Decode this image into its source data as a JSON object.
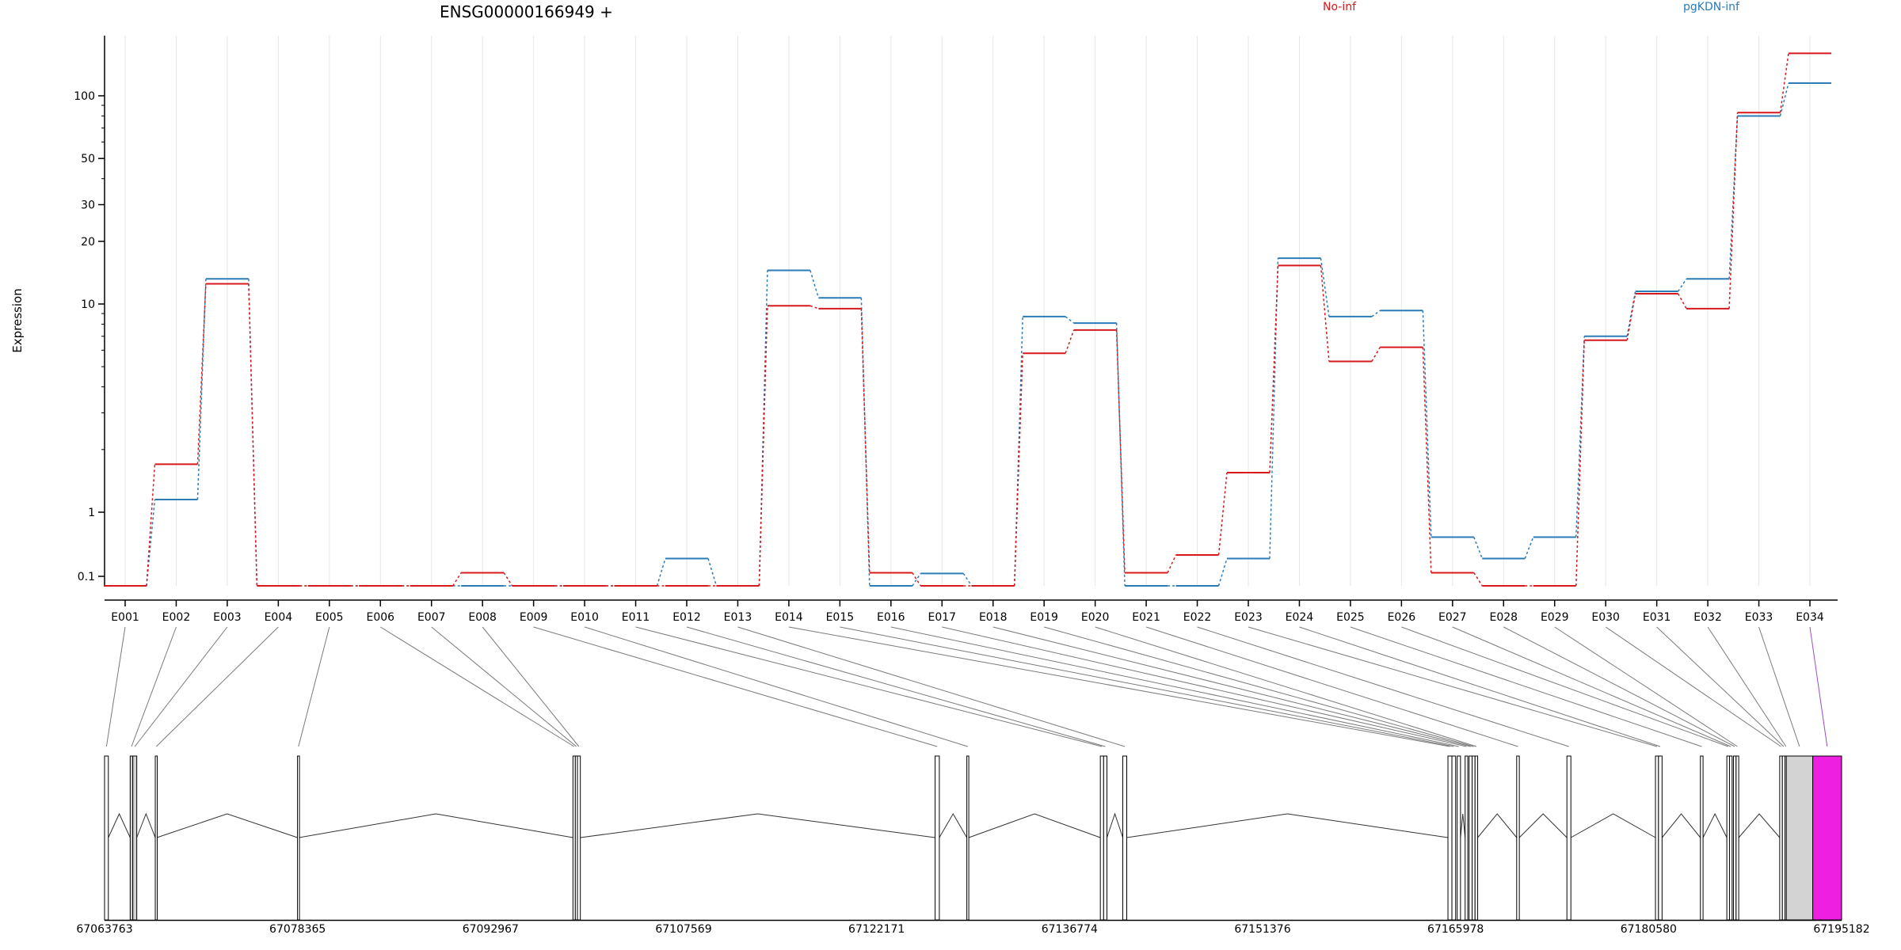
{
  "chart_data": {
    "type": "line",
    "title": "ENSG00000166949 +",
    "ylabel": "Expression",
    "y_scale": "log",
    "yticks": [
      {
        "value": 0.1,
        "label": "0.1"
      },
      {
        "value": 1,
        "label": "1"
      },
      {
        "value": 10,
        "label": "10"
      },
      {
        "value": 20,
        "label": "20"
      },
      {
        "value": 30,
        "label": "30"
      },
      {
        "value": 50,
        "label": "50"
      },
      {
        "value": 100,
        "label": "100"
      }
    ],
    "categories": [
      "E001",
      "E002",
      "E003",
      "E004",
      "E005",
      "E006",
      "E007",
      "E008",
      "E009",
      "E010",
      "E011",
      "E012",
      "E013",
      "E014",
      "E015",
      "E016",
      "E017",
      "E018",
      "E019",
      "E020",
      "E021",
      "E022",
      "E023",
      "E024",
      "E025",
      "E026",
      "E027",
      "E028",
      "E029",
      "E030",
      "E031",
      "E032",
      "E033",
      "E034"
    ],
    "series": [
      {
        "name": "No-inf",
        "color": "#d7191c",
        "values": [
          0.05,
          1.7,
          12.5,
          0.05,
          0.05,
          0.05,
          0.05,
          0.15,
          0.05,
          0.05,
          0.05,
          0.05,
          0.05,
          9.8,
          9.5,
          0.15,
          0.05,
          0.05,
          5.8,
          7.5,
          0.15,
          0.4,
          1.55,
          15.3,
          5.3,
          6.2,
          0.15,
          0.05,
          0.05,
          6.7,
          11.2,
          9.5,
          83,
          160
        ]
      },
      {
        "name": "pgKDN-inf",
        "color": "#2c7bb6",
        "values": [
          0.05,
          1.15,
          13.2,
          0.05,
          0.05,
          0.05,
          0.05,
          0.05,
          0.05,
          0.05,
          0.05,
          0.35,
          0.05,
          14.5,
          10.7,
          0.05,
          0.14,
          0.05,
          8.7,
          8.1,
          0.05,
          0.05,
          0.35,
          16.6,
          8.7,
          9.3,
          0.65,
          0.35,
          0.65,
          7.0,
          11.5,
          13.2,
          80,
          115
        ]
      }
    ],
    "grid": "vertical",
    "legend": "top"
  },
  "gene_model": {
    "coordinate_labels": [
      "67063763",
      "67078365",
      "67092967",
      "67107569",
      "67122171",
      "67136774",
      "67151376",
      "67165978",
      "67180580",
      "67195182"
    ],
    "genome_start": 67063763,
    "genome_end": 67195182,
    "exons": [
      {
        "id": "E001",
        "start": 67063763,
        "end": 67064050,
        "color": "#ffffff"
      },
      {
        "id": "E002",
        "start": 67065700,
        "end": 67065900,
        "color": "#d3d3d3"
      },
      {
        "id": "E003",
        "start": 67065900,
        "end": 67066200,
        "color": "#d3d3d3"
      },
      {
        "id": "E004",
        "start": 67067600,
        "end": 67067720,
        "color": "#ffffff"
      },
      {
        "id": "E005",
        "start": 67078360,
        "end": 67078470,
        "color": "#ffffff"
      },
      {
        "id": "E006",
        "start": 67099200,
        "end": 67099380,
        "color": "#ffffff"
      },
      {
        "id": "E007",
        "start": 67099380,
        "end": 67099540,
        "color": "#ffffff"
      },
      {
        "id": "E008",
        "start": 67099540,
        "end": 67099760,
        "color": "#ffffff"
      },
      {
        "id": "E009",
        "start": 67126600,
        "end": 67126920,
        "color": "#ffffff"
      },
      {
        "id": "E010",
        "start": 67129000,
        "end": 67129150,
        "color": "#ffffff"
      },
      {
        "id": "E011",
        "start": 67139100,
        "end": 67139350,
        "color": "#ffffff"
      },
      {
        "id": "E012",
        "start": 67139350,
        "end": 67139600,
        "color": "#ffffff"
      },
      {
        "id": "E013",
        "start": 67140800,
        "end": 67141100,
        "color": "#ffffff"
      },
      {
        "id": "E014",
        "start": 67165400,
        "end": 67165700,
        "color": "#ffffff"
      },
      {
        "id": "E015",
        "start": 67165700,
        "end": 67165980,
        "color": "#ffffff"
      },
      {
        "id": "E016",
        "start": 67166100,
        "end": 67166350,
        "color": "#ffffff"
      },
      {
        "id": "E017",
        "start": 67166700,
        "end": 67166900,
        "color": "#ffffff"
      },
      {
        "id": "E018",
        "start": 67167000,
        "end": 67167230,
        "color": "#ffffff"
      },
      {
        "id": "E019",
        "start": 67167230,
        "end": 67167450,
        "color": "#ffffff"
      },
      {
        "id": "E020",
        "start": 67167450,
        "end": 67167650,
        "color": "#ffffff"
      },
      {
        "id": "E021",
        "start": 67170600,
        "end": 67170800,
        "color": "#ffffff"
      },
      {
        "id": "E022",
        "start": 67174400,
        "end": 67174700,
        "color": "#ffffff"
      },
      {
        "id": "E023",
        "start": 67181100,
        "end": 67181330,
        "color": "#ffffff"
      },
      {
        "id": "E024",
        "start": 67181330,
        "end": 67181600,
        "color": "#ffffff"
      },
      {
        "id": "E025",
        "start": 67184500,
        "end": 67184700,
        "color": "#ffffff"
      },
      {
        "id": "E026",
        "start": 67186500,
        "end": 67186700,
        "color": "#ffffff"
      },
      {
        "id": "E027",
        "start": 67186700,
        "end": 67186900,
        "color": "#ffffff"
      },
      {
        "id": "E028",
        "start": 67187000,
        "end": 67187200,
        "color": "#ffffff"
      },
      {
        "id": "E029",
        "start": 67187200,
        "end": 67187400,
        "color": "#ffffff"
      },
      {
        "id": "E030",
        "start": 67190500,
        "end": 67190700,
        "color": "#ffffff"
      },
      {
        "id": "E031",
        "start": 67190700,
        "end": 67190900,
        "color": "#ffffff"
      },
      {
        "id": "E032",
        "start": 67190900,
        "end": 67191000,
        "color": "#ffffff"
      },
      {
        "id": "E033",
        "start": 67191000,
        "end": 67193000,
        "color": "#d3d3d3"
      },
      {
        "id": "E034",
        "start": 67193000,
        "end": 67195182,
        "color": "#ee1fe0"
      }
    ]
  }
}
